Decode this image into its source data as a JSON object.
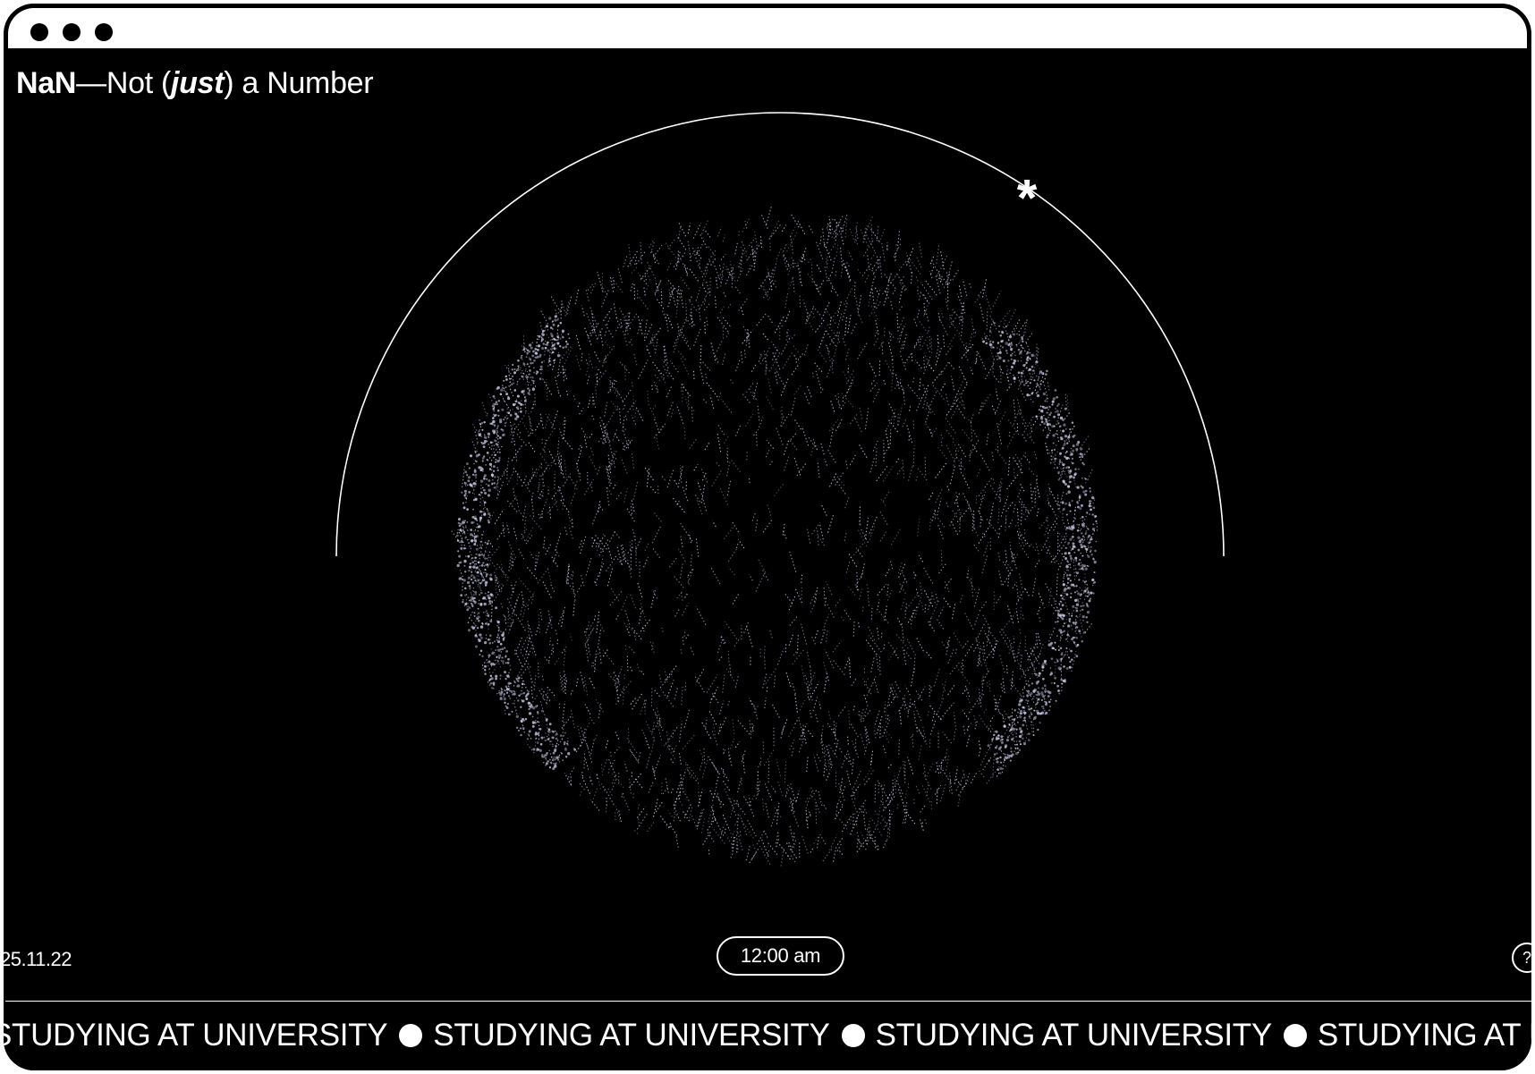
{
  "window": {
    "controls": [
      "window-dot-1",
      "window-dot-2",
      "window-dot-3"
    ]
  },
  "header": {
    "brand": "NaN",
    "title_dash": "—Not (",
    "title_emph": "just",
    "title_rest": ") a Number"
  },
  "visual": {
    "star_glyph": "*",
    "particle_color": "#c8c8e6"
  },
  "footer": {
    "date": "25.11.22",
    "time": "12:00 am",
    "help_glyph": "?"
  },
  "ticker": {
    "items": [
      "STUDYING AT UNIVERSITY",
      "STUDYING AT UNIVERSITY",
      "STUDYING AT UNIVERSITY",
      "STUDYING AT UNIVERSITY"
    ]
  },
  "colors": {
    "background": "#000000",
    "foreground": "#ffffff"
  }
}
